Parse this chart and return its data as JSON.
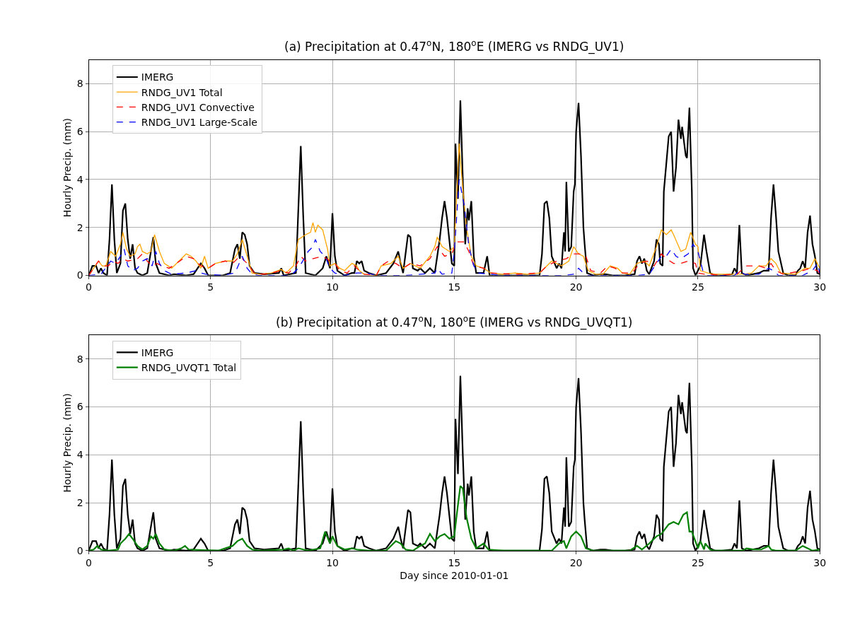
{
  "chart_data": [
    {
      "type": "line",
      "title": "(a) Precipitation at 0.47$^{o}$N, 180$^{o}$E (IMERG vs RNDG_UV1)",
      "ylabel": "Hourly Precip. (mm)",
      "xlim": [
        0,
        30
      ],
      "xticks": [
        0,
        5,
        10,
        15,
        20,
        25,
        30
      ],
      "ylim": [
        0,
        9
      ],
      "yticks": [
        0,
        2,
        4,
        6,
        8
      ],
      "grid": true,
      "legend": "top left",
      "series": [
        {
          "name": "IMERG",
          "color": "#000000",
          "line_style": "solid",
          "x": [
            0,
            0.15,
            0.3,
            0.4,
            0.5,
            0.6,
            0.75,
            0.85,
            0.95,
            1.05,
            1.15,
            1.3,
            1.4,
            1.5,
            1.6,
            1.7,
            1.8,
            1.9,
            2.0,
            2.2,
            2.4,
            2.55,
            2.65,
            2.75,
            2.9,
            3.3,
            3.5,
            4.0,
            4.3,
            4.6,
            4.75,
            4.9,
            5.5,
            5.8,
            6.0,
            6.1,
            6.2,
            6.3,
            6.4,
            6.5,
            6.6,
            6.8,
            7.2,
            7.8,
            7.9,
            8.0,
            8.5,
            8.7,
            8.8,
            8.9,
            9.3,
            9.6,
            9.75,
            9.9,
            10.0,
            10.1,
            10.2,
            10.5,
            10.8,
            10.9,
            11.0,
            11.1,
            11.2,
            11.3,
            11.5,
            11.8,
            12.2,
            12.5,
            12.7,
            12.8,
            12.9,
            13.1,
            13.2,
            13.3,
            13.5,
            13.6,
            13.8,
            14.0,
            14.2,
            14.4,
            14.5,
            14.6,
            14.7,
            14.9,
            15.0,
            15.05,
            15.15,
            15.25,
            15.35,
            15.45,
            15.55,
            15.6,
            15.7,
            15.8,
            15.9,
            16.2,
            16.35,
            16.45,
            17,
            18.5,
            18.6,
            18.7,
            18.8,
            18.9,
            19.0,
            19.2,
            19.3,
            19.4,
            19.5,
            19.55,
            19.6,
            19.7,
            19.8,
            19.9,
            19.95,
            20.0,
            20.1,
            20.2,
            20.3,
            20.35,
            20.45,
            20.7,
            21.0,
            21.2,
            21.5,
            22.0,
            22.4,
            22.5,
            22.6,
            22.7,
            22.8,
            22.9,
            23.0,
            23.2,
            23.3,
            23.4,
            23.45,
            23.55,
            23.6,
            23.8,
            23.9,
            24.0,
            24.1,
            24.2,
            24.3,
            24.35,
            24.5,
            24.55,
            24.65,
            24.75,
            24.8,
            24.9,
            25.1,
            25.25,
            25.35,
            25.5,
            25.7,
            26.0,
            26.4,
            26.5,
            26.6,
            26.7,
            26.8,
            27.0,
            27.5,
            27.7,
            27.9,
            28.0,
            28.1,
            28.2,
            28.3,
            28.5,
            28.7,
            29.0,
            29.1,
            29.2,
            29.3,
            29.4,
            29.5,
            29.6,
            29.7,
            29.8,
            29.9,
            30.0
          ],
          "values": [
            0,
            0.4,
            0.4,
            0.1,
            0.3,
            0.1,
            0,
            1.5,
            3.8,
            1.5,
            0.1,
            0.5,
            2.7,
            3.0,
            1.5,
            0.7,
            1.3,
            0.3,
            0.1,
            0,
            0.1,
            1.0,
            1.6,
            0.5,
            0.1,
            0,
            0.05,
            0,
            0.05,
            0.5,
            0.3,
            0,
            0,
            0.1,
            1.1,
            1.3,
            0.7,
            1.8,
            1.7,
            1.3,
            0.4,
            0.1,
            0.05,
            0.1,
            0.3,
            0,
            0.1,
            5.4,
            2.5,
            0.1,
            0,
            0.3,
            0.8,
            0.3,
            2.6,
            0.8,
            0.2,
            0,
            0.1,
            0.1,
            0.6,
            0.5,
            0.6,
            0.2,
            0.1,
            0,
            0.1,
            0.5,
            1.0,
            0.5,
            0.1,
            1.7,
            1.6,
            0.3,
            0.2,
            0.3,
            0.1,
            0.3,
            0.1,
            1.5,
            2.4,
            3.1,
            2.4,
            0.5,
            0.4,
            5.5,
            3.2,
            7.3,
            4.0,
            1.3,
            2.8,
            2.3,
            3.1,
            0.8,
            0.1,
            0.1,
            0.8,
            0,
            0,
            0,
            0.9,
            3.0,
            3.1,
            2.4,
            0.8,
            0.3,
            0.5,
            0.3,
            1.8,
            1.0,
            3.9,
            1.0,
            1.2,
            3.5,
            3.8,
            6.0,
            7.2,
            5.0,
            2.0,
            1.3,
            0.1,
            0,
            0.05,
            0.05,
            0,
            0,
            0.05,
            0.6,
            0.8,
            0.5,
            0.7,
            0.2,
            0.05,
            0.6,
            1.5,
            1.3,
            0.5,
            0.4,
            3.5,
            5.8,
            6.0,
            3.5,
            4.5,
            6.5,
            5.7,
            6.2,
            5.0,
            4.9,
            7.0,
            3.5,
            0.3,
            0,
            0.4,
            1.7,
            1.0,
            0.1,
            0,
            0,
            0.05,
            0.3,
            0.1,
            2.1,
            0.1,
            0,
            0.1,
            0.2,
            0.2,
            2.4,
            3.8,
            2.5,
            1.0,
            0.1,
            0,
            0,
            0.2,
            0.3,
            0.6,
            0.3,
            1.8,
            2.5,
            1.3,
            0.8,
            0.1,
            0.05
          ]
        },
        {
          "name": "RNDG_UV1 Total",
          "color": "#ffa500",
          "line_style": "solid",
          "x": [
            0,
            0.2,
            0.4,
            0.55,
            0.7,
            0.9,
            1.1,
            1.3,
            1.4,
            1.55,
            1.7,
            1.9,
            2.0,
            2.1,
            2.2,
            2.4,
            2.55,
            2.7,
            2.9,
            3.1,
            3.4,
            3.7,
            4.0,
            4.2,
            4.4,
            4.6,
            4.75,
            4.9,
            5.2,
            5.6,
            5.9,
            6.1,
            6.3,
            6.5,
            6.7,
            7.0,
            7.5,
            7.9,
            8.1,
            8.4,
            8.6,
            8.9,
            9.1,
            9.2,
            9.3,
            9.4,
            9.6,
            9.8,
            9.9,
            10.1,
            10.3,
            10.5,
            10.8,
            11.0,
            11.1,
            11.3,
            11.8,
            12.0,
            12.4,
            12.7,
            12.9,
            13.2,
            13.6,
            14.0,
            14.2,
            14.3,
            14.5,
            14.8,
            15.0,
            15.2,
            15.3,
            15.5,
            15.7,
            15.9,
            16.2,
            16.5,
            17,
            17.5,
            18.0,
            18.5,
            18.7,
            19.0,
            19.4,
            19.7,
            19.9,
            20.1,
            20.3,
            20.5,
            20.8,
            21.1,
            21.4,
            21.7,
            21.9,
            22.2,
            22.5,
            22.8,
            23.0,
            23.3,
            23.5,
            23.7,
            23.9,
            24.0,
            24.3,
            24.5,
            24.7,
            24.9,
            25.0,
            25.1,
            25.4,
            25.7,
            26.5,
            26.9,
            27.2,
            27.5,
            27.8,
            28.0,
            28.2,
            28.4,
            29.0,
            29.4,
            29.6,
            29.8,
            30.0
          ],
          "values": [
            0,
            0.3,
            0.6,
            0.4,
            0.4,
            1.0,
            0.8,
            1.3,
            1.8,
            1.1,
            0.8,
            0.9,
            1.2,
            1.3,
            1.0,
            0.9,
            1.0,
            1.7,
            1.0,
            0.5,
            0.3,
            0.6,
            0.9,
            0.8,
            0.6,
            0.3,
            0.8,
            0.3,
            0.5,
            0.6,
            0.6,
            0.9,
            1.5,
            0.8,
            0.1,
            0.05,
            0.1,
            0.25,
            0.1,
            0.4,
            1.5,
            1.7,
            1.8,
            2.2,
            1.8,
            2.1,
            1.9,
            1.1,
            0.4,
            0.5,
            0.3,
            0.2,
            0.5,
            0.4,
            0.2,
            0.05,
            0,
            0.4,
            0.5,
            0.8,
            0.3,
            0.5,
            0.3,
            0.8,
            1.2,
            1.6,
            1.2,
            1.0,
            1.2,
            5.5,
            4.2,
            2.0,
            0.8,
            0.4,
            0.3,
            0.1,
            0.05,
            0.1,
            0.05,
            0.1,
            0.3,
            0.6,
            0.4,
            0.6,
            1.2,
            0.9,
            0.8,
            0.2,
            0.05,
            0.05,
            0.4,
            0.3,
            0.1,
            0.05,
            0.5,
            0.6,
            0.4,
            1.2,
            1.9,
            1.7,
            1.9,
            1.7,
            1.0,
            1.1,
            1.8,
            1.3,
            1.2,
            0.2,
            0.1,
            0.05,
            0.05,
            0.05,
            0.1,
            0.4,
            0.4,
            0.7,
            0.5,
            0.1,
            0.05,
            0.3,
            0.3,
            0.7,
            0.3
          ]
        },
        {
          "name": "RNDG_UV1 Convective",
          "color": "#ff0000",
          "line_style": "dashed",
          "x": [
            0,
            0.2,
            0.4,
            0.6,
            0.8,
            1.0,
            1.2,
            1.4,
            1.6,
            2.0,
            2.2,
            2.4,
            2.6,
            2.8,
            3.0,
            3.3,
            3.6,
            4.0,
            4.3,
            4.6,
            4.9,
            5.2,
            5.6,
            5.9,
            6.2,
            6.5,
            6.8,
            7.2,
            7.5,
            7.9,
            8.2,
            8.5,
            8.7,
            8.9,
            9.2,
            9.6,
            9.9,
            10.1,
            10.3,
            10.6,
            10.9,
            11.1,
            11.3,
            11.8,
            12.0,
            12.3,
            12.6,
            12.9,
            13.2,
            13.6,
            14.0,
            14.3,
            14.6,
            14.9,
            15.1,
            15.4,
            15.6,
            15.8,
            16.2,
            16.5,
            17.5,
            18.5,
            18.8,
            19.2,
            19.6,
            19.9,
            20.2,
            20.4,
            20.6,
            21.0,
            21.3,
            21.6,
            21.9,
            22.3,
            22.6,
            22.9,
            23.2,
            23.5,
            23.7,
            24.0,
            24.3,
            24.6,
            24.9,
            25.0,
            25.3,
            26.0,
            26.6,
            27.0,
            27.5,
            27.8,
            28.0,
            28.2,
            28.5,
            29.3,
            29.6,
            29.9,
            30
          ],
          "values": [
            0,
            0.3,
            0.6,
            0.4,
            0.4,
            0.6,
            0.5,
            0.7,
            0.6,
            0.7,
            0.9,
            0.6,
            0.4,
            0.5,
            0.4,
            0.3,
            0.5,
            0.8,
            0.7,
            0.4,
            0.3,
            0.5,
            0.6,
            0.5,
            0.8,
            0.5,
            0.1,
            0.05,
            0.1,
            0.2,
            0.1,
            0.4,
            0.8,
            0.6,
            0.7,
            0.8,
            0.6,
            0.5,
            0.2,
            0.1,
            0.4,
            0.2,
            0.05,
            0,
            0.4,
            0.6,
            0.5,
            0.3,
            0.5,
            0.4,
            0.7,
            1.2,
            0.8,
            0.9,
            1.4,
            1.4,
            1.0,
            0.4,
            0.3,
            0.1,
            0.05,
            0.1,
            0.4,
            0.6,
            0.7,
            0.9,
            0.9,
            0.8,
            0.2,
            0.1,
            0.4,
            0.3,
            0.1,
            0.1,
            0.5,
            0.6,
            0.4,
            0.9,
            0.7,
            0.5,
            0.5,
            0.6,
            0.5,
            0.1,
            0.05,
            0.02,
            0.05,
            0.4,
            0.4,
            0.3,
            0.5,
            0.2,
            0.05,
            0.2,
            0.3,
            0.2,
            0.1
          ]
        },
        {
          "name": "RNDG_UV1 Large-Scale",
          "color": "#0000ff",
          "line_style": "dashed",
          "x": [
            0,
            0.5,
            0.9,
            1.1,
            1.3,
            1.45,
            1.6,
            1.8,
            2.0,
            2.2,
            2.4,
            2.6,
            2.75,
            2.9,
            3.1,
            3.4,
            4.0,
            4.4,
            4.6,
            4.8,
            5.5,
            6.0,
            6.3,
            6.5,
            6.7,
            7,
            8.3,
            8.6,
            8.9,
            9.0,
            9.2,
            9.3,
            9.5,
            9.7,
            9.9,
            10.1,
            10.5,
            11.0,
            11.4,
            11.6,
            12,
            13.0,
            14.2,
            14.3,
            14.5,
            14.9,
            15.0,
            15.2,
            15.4,
            15.6,
            15.8,
            16.0,
            16.5,
            17,
            19.5,
            19.9,
            20.1,
            20.3,
            20.5,
            22.5,
            23.0,
            23.3,
            23.5,
            23.7,
            23.9,
            24.1,
            24.3,
            24.6,
            24.8,
            25.0,
            25.2,
            25.4,
            26.5,
            26.7,
            26.9,
            27.5,
            27.9,
            28.1,
            28.3,
            29.3,
            29.7,
            29.9,
            30
          ],
          "values": [
            0,
            0.05,
            0.6,
            0.5,
            0.8,
            1.1,
            0.4,
            0.2,
            0.3,
            0.6,
            0.7,
            0.4,
            1.0,
            0.5,
            0.2,
            0.05,
            0.1,
            0.2,
            0.1,
            0.05,
            0,
            0.1,
            0.8,
            0.3,
            0.05,
            0,
            0,
            0.3,
            0.8,
            1.0,
            1.2,
            1.5,
            1.0,
            0.8,
            0.3,
            0.1,
            0,
            0.1,
            0.1,
            0.05,
            0,
            0,
            0.1,
            0.3,
            0.05,
            0.1,
            1.0,
            4.0,
            3.0,
            1.2,
            0.4,
            0.1,
            0.05,
            0,
            0,
            0.05,
            0.3,
            0.1,
            0,
            0,
            0.05,
            0.5,
            0.8,
            0.8,
            1.1,
            0.8,
            0.7,
            0.9,
            1.3,
            1.0,
            0.2,
            0,
            0,
            0.2,
            0.05,
            0.05,
            0.3,
            0.2,
            0,
            0,
            0.2,
            0.5,
            0.1
          ]
        }
      ]
    },
    {
      "type": "line",
      "title": "(b) Precipitation at 0.47$^{o}$N, 180$^{o}$E (IMERG vs RNDG_UVQT1)",
      "xlabel": "Day since 2010-01-01",
      "ylabel": "Hourly Precip. (mm)",
      "xlim": [
        0,
        30
      ],
      "xticks": [
        0,
        5,
        10,
        15,
        20,
        25,
        30
      ],
      "ylim": [
        0,
        9
      ],
      "yticks": [
        0,
        2,
        4,
        6,
        8
      ],
      "grid": true,
      "legend": "top left",
      "series": [
        {
          "name": "IMERG",
          "color": "#000000",
          "line_style": "solid",
          "x": [
            0,
            0.15,
            0.3,
            0.4,
            0.5,
            0.6,
            0.75,
            0.85,
            0.95,
            1.05,
            1.15,
            1.3,
            1.4,
            1.5,
            1.6,
            1.7,
            1.8,
            1.9,
            2.0,
            2.2,
            2.4,
            2.55,
            2.65,
            2.75,
            2.9,
            3.3,
            3.5,
            4.0,
            4.3,
            4.6,
            4.75,
            4.9,
            5.5,
            5.8,
            6.0,
            6.1,
            6.2,
            6.3,
            6.4,
            6.5,
            6.6,
            6.8,
            7.2,
            7.8,
            7.9,
            8.0,
            8.5,
            8.7,
            8.8,
            8.9,
            9.3,
            9.6,
            9.75,
            9.9,
            10.0,
            10.1,
            10.2,
            10.5,
            10.8,
            10.9,
            11.0,
            11.1,
            11.2,
            11.3,
            11.5,
            11.8,
            12.2,
            12.5,
            12.7,
            12.8,
            12.9,
            13.1,
            13.2,
            13.3,
            13.5,
            13.6,
            13.8,
            14.0,
            14.2,
            14.4,
            14.5,
            14.6,
            14.7,
            14.9,
            15.0,
            15.05,
            15.15,
            15.25,
            15.35,
            15.45,
            15.55,
            15.6,
            15.7,
            15.8,
            15.9,
            16.2,
            16.35,
            16.45,
            17,
            18.5,
            18.6,
            18.7,
            18.8,
            18.9,
            19.0,
            19.2,
            19.3,
            19.4,
            19.5,
            19.55,
            19.6,
            19.7,
            19.8,
            19.9,
            19.95,
            20.0,
            20.1,
            20.2,
            20.3,
            20.35,
            20.45,
            20.7,
            21.0,
            21.2,
            21.5,
            22.0,
            22.4,
            22.5,
            22.6,
            22.7,
            22.8,
            22.9,
            23.0,
            23.2,
            23.3,
            23.4,
            23.45,
            23.55,
            23.6,
            23.8,
            23.9,
            24.0,
            24.1,
            24.2,
            24.3,
            24.35,
            24.5,
            24.55,
            24.65,
            24.75,
            24.8,
            24.9,
            25.1,
            25.25,
            25.35,
            25.5,
            25.7,
            26.0,
            26.4,
            26.5,
            26.6,
            26.7,
            26.8,
            27.0,
            27.5,
            27.7,
            27.9,
            28.0,
            28.1,
            28.2,
            28.3,
            28.5,
            28.7,
            29.0,
            29.1,
            29.2,
            29.3,
            29.4,
            29.5,
            29.6,
            29.7,
            29.8,
            29.9,
            30.0
          ],
          "values": [
            0,
            0.4,
            0.4,
            0.1,
            0.3,
            0.1,
            0,
            1.5,
            3.8,
            1.5,
            0.1,
            0.5,
            2.7,
            3.0,
            1.5,
            0.7,
            1.3,
            0.3,
            0.1,
            0,
            0.1,
            1.0,
            1.6,
            0.5,
            0.1,
            0,
            0.05,
            0,
            0.05,
            0.5,
            0.3,
            0,
            0,
            0.1,
            1.1,
            1.3,
            0.7,
            1.8,
            1.7,
            1.3,
            0.4,
            0.1,
            0.05,
            0.1,
            0.3,
            0,
            0.1,
            5.4,
            2.5,
            0.1,
            0,
            0.3,
            0.8,
            0.3,
            2.6,
            0.8,
            0.2,
            0,
            0.1,
            0.1,
            0.6,
            0.5,
            0.6,
            0.2,
            0.1,
            0,
            0.1,
            0.5,
            1.0,
            0.5,
            0.1,
            1.7,
            1.6,
            0.3,
            0.2,
            0.3,
            0.1,
            0.3,
            0.1,
            1.5,
            2.4,
            3.1,
            2.4,
            0.5,
            0.4,
            5.5,
            3.2,
            7.3,
            4.0,
            1.3,
            2.8,
            2.3,
            3.1,
            0.8,
            0.1,
            0.1,
            0.8,
            0,
            0,
            0,
            0.9,
            3.0,
            3.1,
            2.4,
            0.8,
            0.3,
            0.5,
            0.3,
            1.8,
            1.0,
            3.9,
            1.0,
            1.2,
            3.5,
            3.8,
            6.0,
            7.2,
            5.0,
            2.0,
            1.3,
            0.1,
            0,
            0.05,
            0.05,
            0,
            0,
            0.05,
            0.6,
            0.8,
            0.5,
            0.7,
            0.2,
            0.05,
            0.6,
            1.5,
            1.3,
            0.5,
            0.4,
            3.5,
            5.8,
            6.0,
            3.5,
            4.5,
            6.5,
            5.7,
            6.2,
            5.0,
            4.9,
            7.0,
            3.5,
            0.3,
            0,
            0.4,
            1.7,
            1.0,
            0.1,
            0,
            0,
            0.05,
            0.3,
            0.1,
            2.1,
            0.1,
            0,
            0.1,
            0.2,
            0.2,
            2.4,
            3.8,
            2.5,
            1.0,
            0.1,
            0,
            0,
            0.2,
            0.3,
            0.6,
            0.3,
            1.8,
            2.5,
            1.3,
            0.8,
            0.1,
            0.05
          ]
        },
        {
          "name": "RNDG_UVQT1 Total",
          "color": "#008000",
          "line_style": "solid",
          "x": [
            0,
            0.2,
            0.35,
            0.5,
            0.8,
            1.2,
            1.3,
            1.5,
            1.65,
            1.8,
            2.0,
            2.2,
            2.4,
            2.55,
            2.65,
            2.75,
            2.9,
            3.1,
            3.5,
            3.8,
            3.95,
            4.1,
            5.3,
            5.6,
            5.9,
            6.1,
            6.3,
            6.5,
            6.7,
            7.0,
            8.0,
            8.2,
            8.4,
            8.6,
            8.8,
            9.0,
            9.5,
            9.7,
            9.9,
            10.0,
            10.2,
            10.5,
            10.8,
            11.0,
            11.5,
            12.2,
            12.6,
            12.8,
            13.0,
            13.3,
            13.6,
            13.8,
            14.0,
            14.2,
            14.4,
            14.6,
            14.8,
            15.0,
            15.1,
            15.25,
            15.35,
            15.5,
            15.7,
            15.9,
            16.2,
            16.4,
            17,
            19.0,
            19.3,
            19.5,
            19.6,
            19.8,
            20.0,
            20.2,
            20.4,
            20.7,
            22.2,
            22.5,
            22.7,
            23.0,
            23.3,
            23.5,
            23.8,
            24.0,
            24.2,
            24.4,
            24.55,
            24.65,
            24.75,
            25.0,
            25.1,
            25.25,
            25.3,
            25.5,
            25.7,
            26.8,
            27.0,
            27.3,
            27.6,
            27.9,
            28.0,
            28.2,
            29.0,
            29.3,
            29.5,
            29.7,
            30
          ],
          "values": [
            0,
            0.05,
            0.2,
            0.05,
            0,
            0.05,
            0.3,
            0.5,
            0.7,
            0.5,
            0.2,
            0.05,
            0.2,
            0.6,
            0.5,
            0.7,
            0.3,
            0.05,
            0,
            0.1,
            0.2,
            0.05,
            0,
            0.1,
            0.2,
            0.4,
            0.5,
            0.2,
            0.05,
            0,
            0.05,
            0.1,
            0,
            0.1,
            0.05,
            0,
            0.1,
            0.8,
            0.3,
            0.6,
            0.2,
            0.05,
            0.1,
            0.05,
            0,
            0,
            0.4,
            0.3,
            0.05,
            0,
            0.2,
            0.3,
            0.7,
            0.4,
            0.6,
            0.7,
            0.5,
            0.6,
            1.5,
            2.7,
            2.6,
            1.4,
            0.5,
            0.1,
            0.3,
            0.05,
            0,
            0,
            0.3,
            0.4,
            0.1,
            0.6,
            0.8,
            0.6,
            0.1,
            0,
            0,
            0.2,
            0.05,
            0.3,
            0.6,
            0.7,
            1.1,
            1.2,
            1.1,
            1.5,
            1.6,
            0.8,
            0.8,
            0.1,
            0.4,
            0.05,
            0.3,
            0.05,
            0,
            0,
            0.1,
            0.05,
            0.05,
            0.2,
            0.05,
            0,
            0,
            0.2,
            0.1,
            0,
            0.05
          ]
        }
      ]
    }
  ]
}
